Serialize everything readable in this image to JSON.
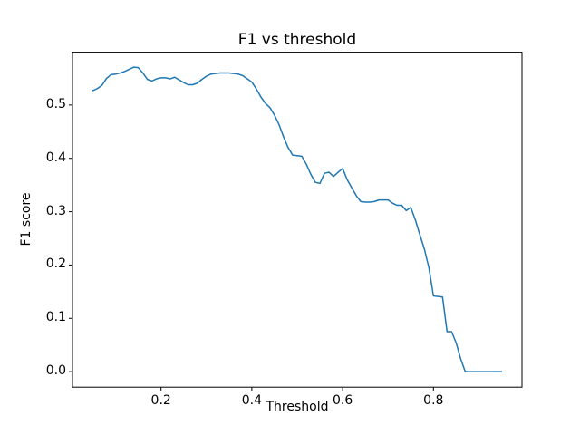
{
  "figure": {
    "title": "F1 vs threshold",
    "xlabel": "Threshold",
    "ylabel": "F1 score"
  },
  "colors": {
    "background": "#ffffff",
    "text": "#000000",
    "spine": "#000000",
    "line": "#1f77b4"
  },
  "chart_data": {
    "type": "line",
    "title": "F1 vs threshold",
    "xlabel": "Threshold",
    "ylabel": "F1 score",
    "grid": false,
    "legend": null,
    "xlim": [
      0.005,
      0.995
    ],
    "ylim": [
      -0.029,
      0.599
    ],
    "xticks": {
      "values": [
        0.2,
        0.4,
        0.6,
        0.8
      ],
      "labels": [
        "0.2",
        "0.4",
        "0.6",
        "0.8"
      ]
    },
    "yticks": {
      "values": [
        0.0,
        0.1,
        0.2,
        0.3,
        0.4,
        0.5
      ],
      "labels": [
        "0.0",
        "0.1",
        "0.2",
        "0.3",
        "0.4",
        "0.5"
      ]
    },
    "line_color": "#1f77b4",
    "line_width": 1.5,
    "series": [
      {
        "name": "F1",
        "x": [
          0.05,
          0.06,
          0.07,
          0.08,
          0.09,
          0.1,
          0.11,
          0.12,
          0.13,
          0.14,
          0.15,
          0.16,
          0.17,
          0.18,
          0.19,
          0.2,
          0.21,
          0.22,
          0.23,
          0.24,
          0.25,
          0.26,
          0.27,
          0.28,
          0.29,
          0.3,
          0.31,
          0.32,
          0.33,
          0.34,
          0.35,
          0.36,
          0.37,
          0.38,
          0.39,
          0.4,
          0.41,
          0.42,
          0.43,
          0.44,
          0.45,
          0.46,
          0.47,
          0.48,
          0.49,
          0.5,
          0.51,
          0.52,
          0.53,
          0.54,
          0.55,
          0.56,
          0.57,
          0.58,
          0.59,
          0.6,
          0.61,
          0.62,
          0.63,
          0.64,
          0.65,
          0.66,
          0.67,
          0.68,
          0.69,
          0.7,
          0.71,
          0.72,
          0.73,
          0.74,
          0.75,
          0.76,
          0.77,
          0.78,
          0.79,
          0.8,
          0.81,
          0.82,
          0.83,
          0.84,
          0.85,
          0.86,
          0.87,
          0.88,
          0.89,
          0.9,
          0.91,
          0.92,
          0.93,
          0.94,
          0.95
        ],
        "y": [
          0.527,
          0.531,
          0.537,
          0.55,
          0.557,
          0.558,
          0.56,
          0.563,
          0.567,
          0.571,
          0.57,
          0.56,
          0.548,
          0.545,
          0.549,
          0.551,
          0.551,
          0.549,
          0.552,
          0.547,
          0.542,
          0.538,
          0.538,
          0.541,
          0.548,
          0.554,
          0.558,
          0.559,
          0.56,
          0.56,
          0.56,
          0.559,
          0.558,
          0.555,
          0.549,
          0.543,
          0.53,
          0.515,
          0.503,
          0.495,
          0.481,
          0.463,
          0.44,
          0.42,
          0.406,
          0.405,
          0.404,
          0.389,
          0.37,
          0.355,
          0.353,
          0.372,
          0.374,
          0.366,
          0.374,
          0.381,
          0.36,
          0.345,
          0.33,
          0.319,
          0.318,
          0.318,
          0.319,
          0.322,
          0.322,
          0.322,
          0.316,
          0.312,
          0.312,
          0.302,
          0.308,
          0.285,
          0.257,
          0.23,
          0.195,
          0.142,
          0.141,
          0.14,
          0.075,
          0.075,
          0.054,
          0.024,
          0.0,
          0.0,
          0.0,
          0.0,
          0.0,
          0.0,
          0.0,
          0.0,
          0.0
        ]
      }
    ]
  }
}
